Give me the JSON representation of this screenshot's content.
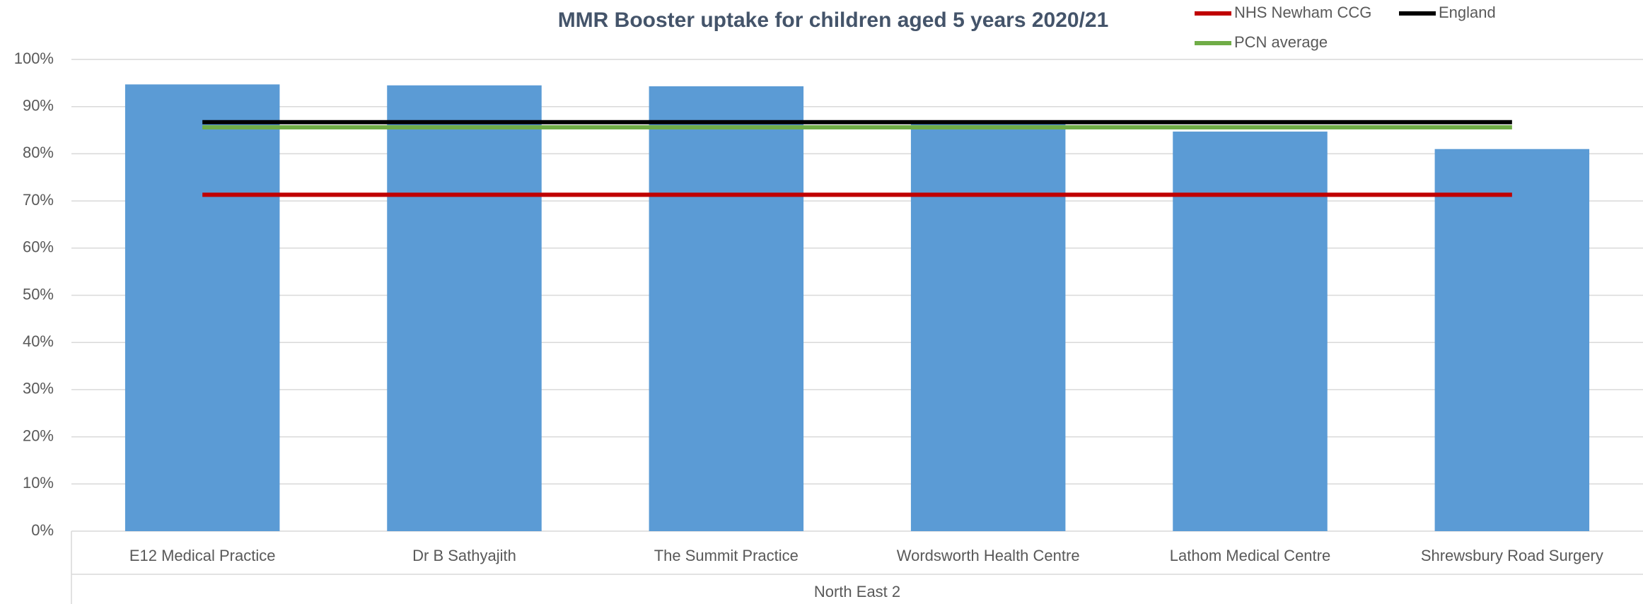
{
  "chart_data": {
    "type": "bar",
    "title": "MMR Booster uptake for children aged 5 years 2020/21",
    "categories": [
      "E12 Medical Practice",
      "Dr B Sathyajith",
      "The Summit Practice",
      "Wordsworth Health Centre",
      "Lathom Medical Centre",
      "Shrewsbury Road Surgery"
    ],
    "group_label": "North East 2",
    "values": [
      94.7,
      94.5,
      94.3,
      86.3,
      84.7,
      81.0
    ],
    "color": "#5b9bd5",
    "lines": [
      {
        "name": "NHS Newham CCG",
        "color": "#c00000",
        "value": 71.3
      },
      {
        "name": "England",
        "color": "#000000",
        "value": 86.7
      },
      {
        "name": "PCN average",
        "color": "#70ad47",
        "value": 85.6
      }
    ],
    "ylim": [
      0,
      100
    ],
    "yticks": [
      {
        "value": 0,
        "label": "0%"
      },
      {
        "value": 10,
        "label": "10%"
      },
      {
        "value": 20,
        "label": "20%"
      },
      {
        "value": 30,
        "label": "30%"
      },
      {
        "value": 40,
        "label": "40%"
      },
      {
        "value": 50,
        "label": "50%"
      },
      {
        "value": 60,
        "label": "60%"
      },
      {
        "value": 70,
        "label": "70%"
      },
      {
        "value": 80,
        "label": "80%"
      },
      {
        "value": 90,
        "label": "90%"
      },
      {
        "value": 100,
        "label": "100%"
      }
    ],
    "grid": true
  }
}
